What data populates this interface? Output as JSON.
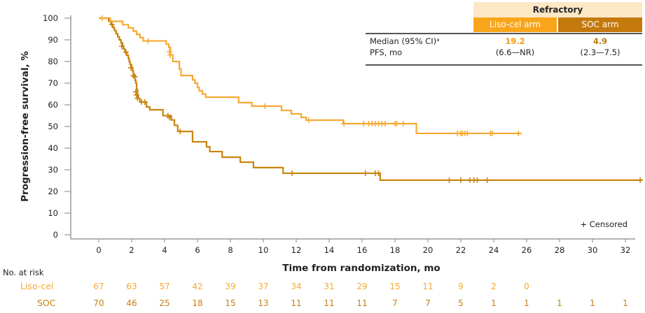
{
  "chart_data": {
    "type": "line",
    "subtype": "kaplan-meier",
    "title": "",
    "xlabel": "Time from randomization, mo",
    "ylabel": "Progression-free survival, %",
    "xlim": [
      -1.7,
      33
    ],
    "ylim": [
      0,
      100
    ],
    "xticks": [
      0,
      2,
      4,
      6,
      8,
      10,
      12,
      14,
      16,
      18,
      20,
      22,
      24,
      26,
      28,
      30,
      32
    ],
    "yticks": [
      0,
      10,
      20,
      30,
      40,
      50,
      60,
      70,
      80,
      90,
      100
    ],
    "grid": false,
    "legend": {
      "text": "+ Censored",
      "position": "bottom-right"
    },
    "series": [
      {
        "name": "Liso-cel",
        "color": "#F7A833",
        "steps": [
          [
            0,
            100
          ],
          [
            0.7,
            98.5
          ],
          [
            1.45,
            97.0
          ],
          [
            1.8,
            95.5
          ],
          [
            2.1,
            94.0
          ],
          [
            2.3,
            92.5
          ],
          [
            2.5,
            91.0
          ],
          [
            2.7,
            89.5
          ],
          [
            4.1,
            88.0
          ],
          [
            4.25,
            86.5
          ],
          [
            4.35,
            83.0
          ],
          [
            4.5,
            80.0
          ],
          [
            4.9,
            76.5
          ],
          [
            5.0,
            73.5
          ],
          [
            5.7,
            71.5
          ],
          [
            5.85,
            70.0
          ],
          [
            6.0,
            68.0
          ],
          [
            6.1,
            66.5
          ],
          [
            6.3,
            65.0
          ],
          [
            6.5,
            63.5
          ],
          [
            8.5,
            61.0
          ],
          [
            9.3,
            59.4
          ],
          [
            11.1,
            57.4
          ],
          [
            11.7,
            55.8
          ],
          [
            12.3,
            54.2
          ],
          [
            12.6,
            52.9
          ],
          [
            14.85,
            51.3
          ],
          [
            19.3,
            46.8
          ]
        ],
        "end": 25.7,
        "censored": [
          [
            0.2,
            100
          ],
          [
            3.0,
            89.5
          ],
          [
            4.3,
            84.5
          ],
          [
            4.35,
            83.0
          ],
          [
            10.1,
            59.4
          ],
          [
            12.75,
            52.9
          ],
          [
            14.9,
            51.3
          ],
          [
            16.1,
            51.3
          ],
          [
            16.4,
            51.3
          ],
          [
            16.6,
            51.3
          ],
          [
            16.8,
            51.3
          ],
          [
            17.0,
            51.3
          ],
          [
            17.2,
            51.3
          ],
          [
            17.4,
            51.3
          ],
          [
            18.0,
            51.3
          ],
          [
            18.1,
            51.3
          ],
          [
            18.5,
            51.3
          ],
          [
            21.8,
            46.8
          ],
          [
            22.0,
            46.8
          ],
          [
            22.1,
            46.8
          ],
          [
            22.25,
            46.8
          ],
          [
            22.4,
            46.8
          ],
          [
            23.8,
            46.8
          ],
          [
            23.9,
            46.8
          ],
          [
            25.5,
            46.8
          ]
        ]
      },
      {
        "name": "SOC",
        "color": "#C8850F",
        "steps": [
          [
            0,
            100
          ],
          [
            0.6,
            98.6
          ],
          [
            0.75,
            97.1
          ],
          [
            0.85,
            95.7
          ],
          [
            0.95,
            94.3
          ],
          [
            1.05,
            92.9
          ],
          [
            1.15,
            91.4
          ],
          [
            1.25,
            90.0
          ],
          [
            1.35,
            88.6
          ],
          [
            1.45,
            87.1
          ],
          [
            1.5,
            85.7
          ],
          [
            1.6,
            84.3
          ],
          [
            1.7,
            82.9
          ],
          [
            1.8,
            81.4
          ],
          [
            1.85,
            80.0
          ],
          [
            1.9,
            78.6
          ],
          [
            2.0,
            77.1
          ],
          [
            2.05,
            75.7
          ],
          [
            2.1,
            74.3
          ],
          [
            2.15,
            72.9
          ],
          [
            2.2,
            71.4
          ],
          [
            2.25,
            70.0
          ],
          [
            2.3,
            67.1
          ],
          [
            2.35,
            64.3
          ],
          [
            2.4,
            62.9
          ],
          [
            2.5,
            61.3
          ],
          [
            2.9,
            59.0
          ],
          [
            3.1,
            57.7
          ],
          [
            3.9,
            55.0
          ],
          [
            4.4,
            53.0
          ],
          [
            4.6,
            50.5
          ],
          [
            4.8,
            47.7
          ],
          [
            5.7,
            42.9
          ],
          [
            6.55,
            40.6
          ],
          [
            6.75,
            38.4
          ],
          [
            7.5,
            35.8
          ],
          [
            8.6,
            33.5
          ],
          [
            9.4,
            31.0
          ],
          [
            11.2,
            28.4
          ],
          [
            17.1,
            25.2
          ]
        ],
        "end": 33,
        "censored": [
          [
            0.8,
            97.1
          ],
          [
            1.4,
            87.1
          ],
          [
            1.65,
            84.3
          ],
          [
            1.95,
            77.1
          ],
          [
            2.1,
            73.5
          ],
          [
            2.2,
            72.9
          ],
          [
            2.25,
            66.0
          ],
          [
            2.3,
            64.5
          ],
          [
            2.35,
            63.0
          ],
          [
            2.6,
            61.3
          ],
          [
            2.8,
            61.3
          ],
          [
            4.2,
            55.0
          ],
          [
            4.3,
            54.2
          ],
          [
            4.95,
            47.7
          ],
          [
            11.75,
            28.4
          ],
          [
            16.2,
            28.4
          ],
          [
            16.8,
            28.4
          ],
          [
            17.0,
            28.4
          ],
          [
            21.3,
            25.2
          ],
          [
            22.0,
            25.2
          ],
          [
            22.55,
            25.2
          ],
          [
            22.8,
            25.2
          ],
          [
            23.0,
            25.2
          ],
          [
            23.6,
            25.2
          ],
          [
            32.9,
            25.2
          ]
        ]
      }
    ],
    "at_risk": {
      "title": "No. at risk",
      "times": [
        0,
        2,
        4,
        6,
        8,
        10,
        12,
        14,
        16,
        18,
        20,
        22,
        24,
        26,
        28,
        30,
        32
      ],
      "rows": [
        {
          "label": "Liso-cel",
          "color": "#F5A930",
          "values": [
            "67",
            "63",
            "57",
            "42",
            "39",
            "37",
            "34",
            "31",
            "29",
            "15",
            "11",
            "9",
            "2",
            "0",
            "",
            "",
            ""
          ]
        },
        {
          "label": "SOC",
          "color": "#C4800F",
          "values": [
            "70",
            "46",
            "25",
            "18",
            "15",
            "13",
            "11",
            "11",
            "11",
            "7",
            "7",
            "5",
            "1",
            "1",
            "1",
            "1",
            "1"
          ]
        }
      ]
    }
  },
  "stats_table": {
    "group_header": "Refractory",
    "arms": [
      "Liso-cel arm",
      "SOC arm"
    ],
    "row_label_1": "Median (95% CI)ᵃ",
    "row_label_2": "PFS, mo",
    "liso_median": "19.2",
    "liso_ci": "(6.6—NR)",
    "soc_median": "4.9",
    "soc_ci": "(2.3—7.5)",
    "colors": {
      "header_bg": "#FDE8C6",
      "liso": "#F9A51B",
      "soc": "#C4790C"
    }
  }
}
